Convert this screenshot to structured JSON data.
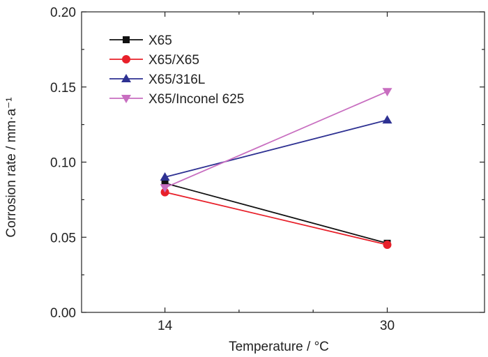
{
  "chart_data": {
    "type": "line",
    "title": "",
    "xlabel": "Temperature / °C",
    "ylabel": "Corrosion rate / mm·a⁻¹",
    "x": [
      14,
      30
    ],
    "x_tick_labels": [
      "14",
      "30"
    ],
    "y_tick_labels": [
      "0.00",
      "0.05",
      "0.10",
      "0.15",
      "0.20"
    ],
    "xlim": [
      8,
      37
    ],
    "ylim": [
      0.0,
      0.2
    ],
    "legend_position": "top-left",
    "grid": false,
    "series": [
      {
        "name": "X65",
        "values": [
          0.086,
          0.046
        ],
        "color": "#111111",
        "marker": "square"
      },
      {
        "name": "X65/X65",
        "values": [
          0.08,
          0.045
        ],
        "color": "#e8202a",
        "marker": "circle"
      },
      {
        "name": "X65/316L",
        "values": [
          0.09,
          0.128
        ],
        "color": "#2e3192",
        "marker": "triangle-up"
      },
      {
        "name": "X65/Inconel 625",
        "values": [
          0.083,
          0.147
        ],
        "color": "#c86ec0",
        "marker": "triangle-down"
      }
    ]
  }
}
